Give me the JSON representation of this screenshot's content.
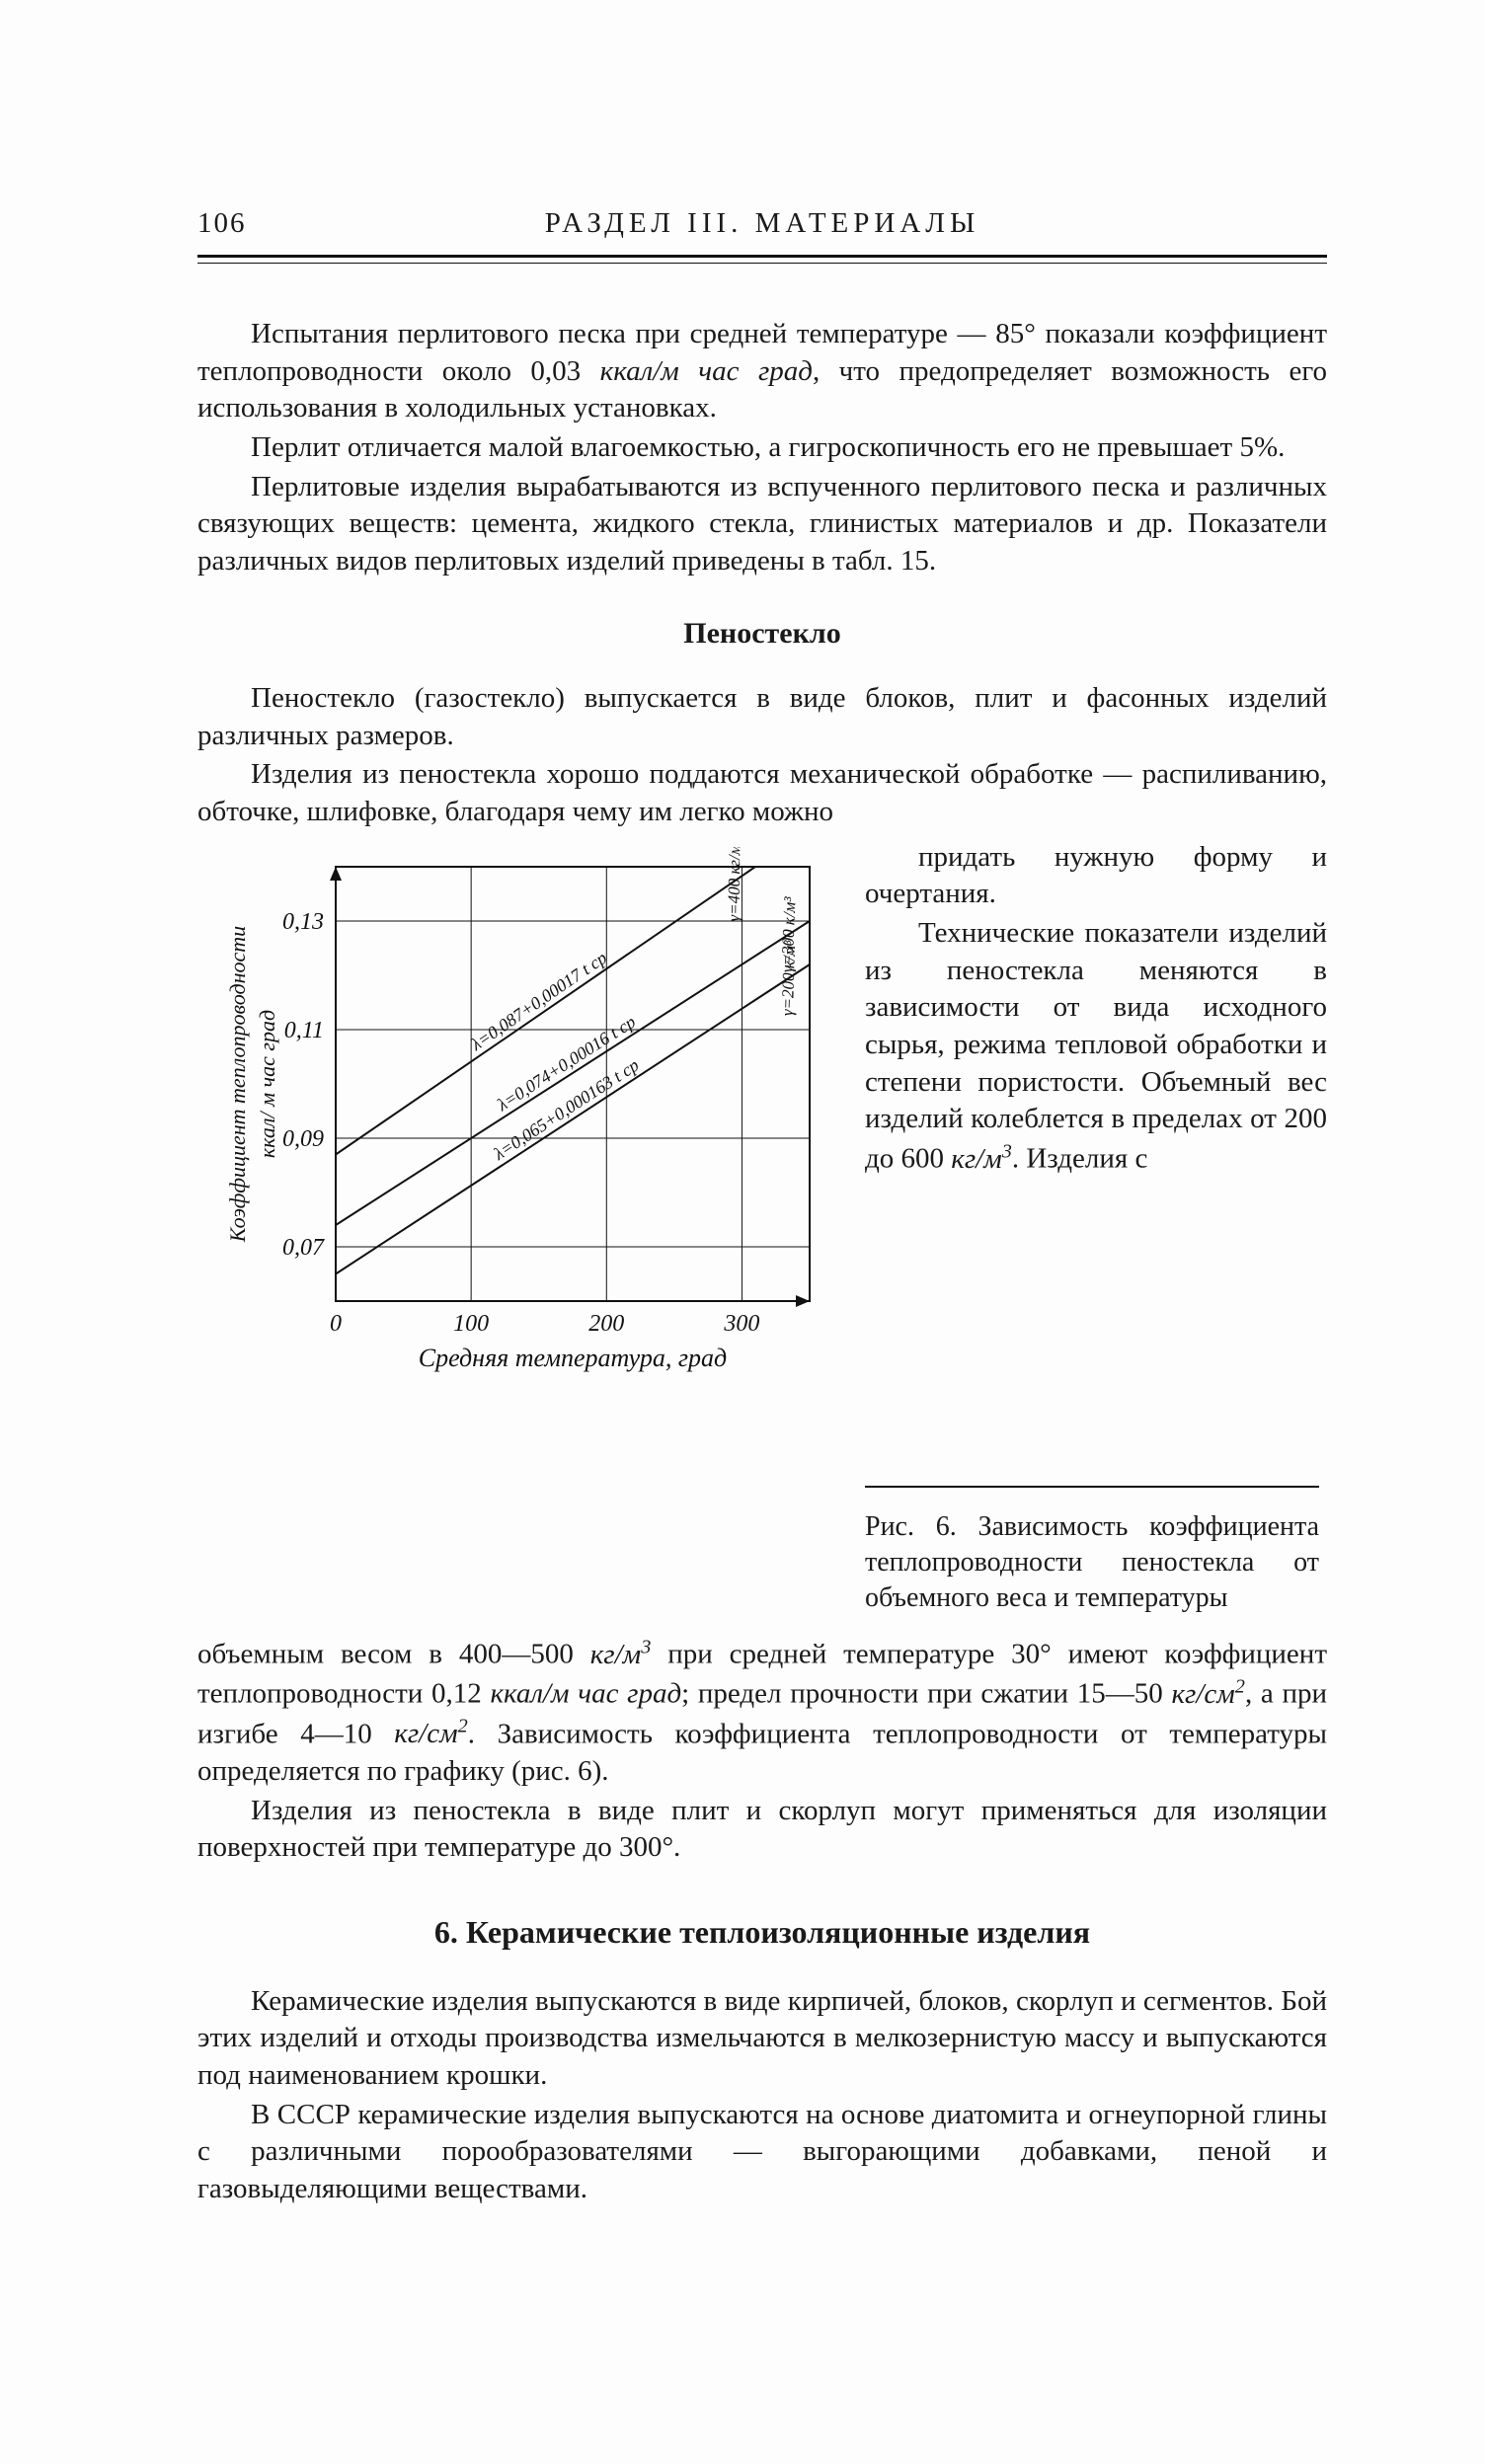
{
  "page_number": "106",
  "running_head": "РАЗДЕЛ  III.  МАТЕРИАЛЫ",
  "para1": "Испытания перлитового песка при средней температуре — 85° показали коэффициент теплопроводности около 0,03 ",
  "para1_it": "ккал/м час град",
  "para1_tail": ", что предопределяет возможность его использования в холодильных установках.",
  "para2": "Перлит отличается малой влагоемкостью, а гигроскопичность его не превышает 5%.",
  "para3": "Перлитовые изделия вырабатываются из вспученного перлитового песка и различных связующих веществ: цемента, жидкого стекла, глинистых материалов и др. Показатели различных видов перлитовых изделий приведены в табл. 15.",
  "subhead1": "Пеностекло",
  "para4": "Пеностекло (газостекло) выпускается в виде блоков, плит и фасонных изделий различных размеров.",
  "para5": "Изделия из пеностекла хорошо поддаются механической обработке — распиливанию, обточке, шлифовке, благодаря чему им легко можно",
  "wrap_p1": "придать нужную форму и очертания.",
  "wrap_p2_a": "Технические показатели изделий из пеностекла меняются в зависимости от вида исходного сырья, режима тепловой обработки и степени пористости. Объемный вес изделий колеблется в пределах от 200 до 600 ",
  "wrap_p2_it": "кг/м",
  "wrap_p2_b": ". Изделия   с",
  "fig_caption": "Рис. 6. Зависимость коэффициента теплопроводности пеностекла от объемного веса и температуры",
  "chart": {
    "type": "line",
    "background_color": "#fdfdfd",
    "axis_color": "#111111",
    "grid_color": "#111111",
    "line_color": "#111111",
    "text_color": "#111111",
    "axis_fontsize": 24,
    "label_fontsize": 22,
    "y_axis_label": "Коэффициент теплопроводности ккал/м час град",
    "x_axis_label": "Средняя температура, град",
    "xlim": [
      0,
      350
    ],
    "ylim": [
      0.06,
      0.14
    ],
    "xticks": [
      0,
      100,
      200,
      300
    ],
    "yticks": [
      0.07,
      0.09,
      0.11,
      0.13
    ],
    "ytick_labels": [
      "0,07",
      "0,09",
      "0,11",
      "0,13"
    ],
    "xtick_labels": [
      "0",
      "100",
      "200",
      "300"
    ],
    "series": [
      {
        "label": "λ=0,065+0,000163 t ср",
        "side_label": "γ=200 к/м³",
        "points": [
          [
            0,
            0.065
          ],
          [
            350,
            0.122
          ]
        ]
      },
      {
        "label": "λ=0,074+0,00016 t ср",
        "side_label": "γ=300 к/м³",
        "points": [
          [
            0,
            0.074
          ],
          [
            350,
            0.13
          ]
        ]
      },
      {
        "label": "λ=0,087+0,00017 t ср",
        "side_label": "γ=400 кг/м³",
        "points": [
          [
            0,
            0.087
          ],
          [
            345,
            0.146
          ]
        ]
      }
    ],
    "line_width": 2.0
  },
  "para6_a": "объемным весом в 400—500 ",
  "para6_it1": "кг/м",
  "para6_b": " при средней температуре 30° имеют коэффициент теплопроводности 0,12 ",
  "para6_it2": "ккал/м час град",
  "para6_c": "; предел прочности при сжатии 15—50 ",
  "para6_it3": "кг/см",
  "para6_d": ", а при изгибе 4—10 ",
  "para6_it4": "кг/см",
  "para6_e": ". Зависимость коэффициента теплопроводности от температуры определяется по графику (рис. 6).",
  "para7": "Изделия из пеностекла в виде плит и скорлуп могут применяться для изоляции поверхностей при температуре до 300°.",
  "section_head": "6. Керамические теплоизоляционные изделия",
  "para8": "Керамические изделия выпускаются в виде кирпичей, блоков, скорлуп и сегментов. Бой этих изделий и отходы производства измельчаются в мелкозернистую массу и выпускаются под наименованием крошки.",
  "para9": "В СССР керамические изделия выпускаются на основе диатомита и огнеупорной глины с различными порообразователями — выгорающими добавками, пеной и газовыделяющими веществами."
}
